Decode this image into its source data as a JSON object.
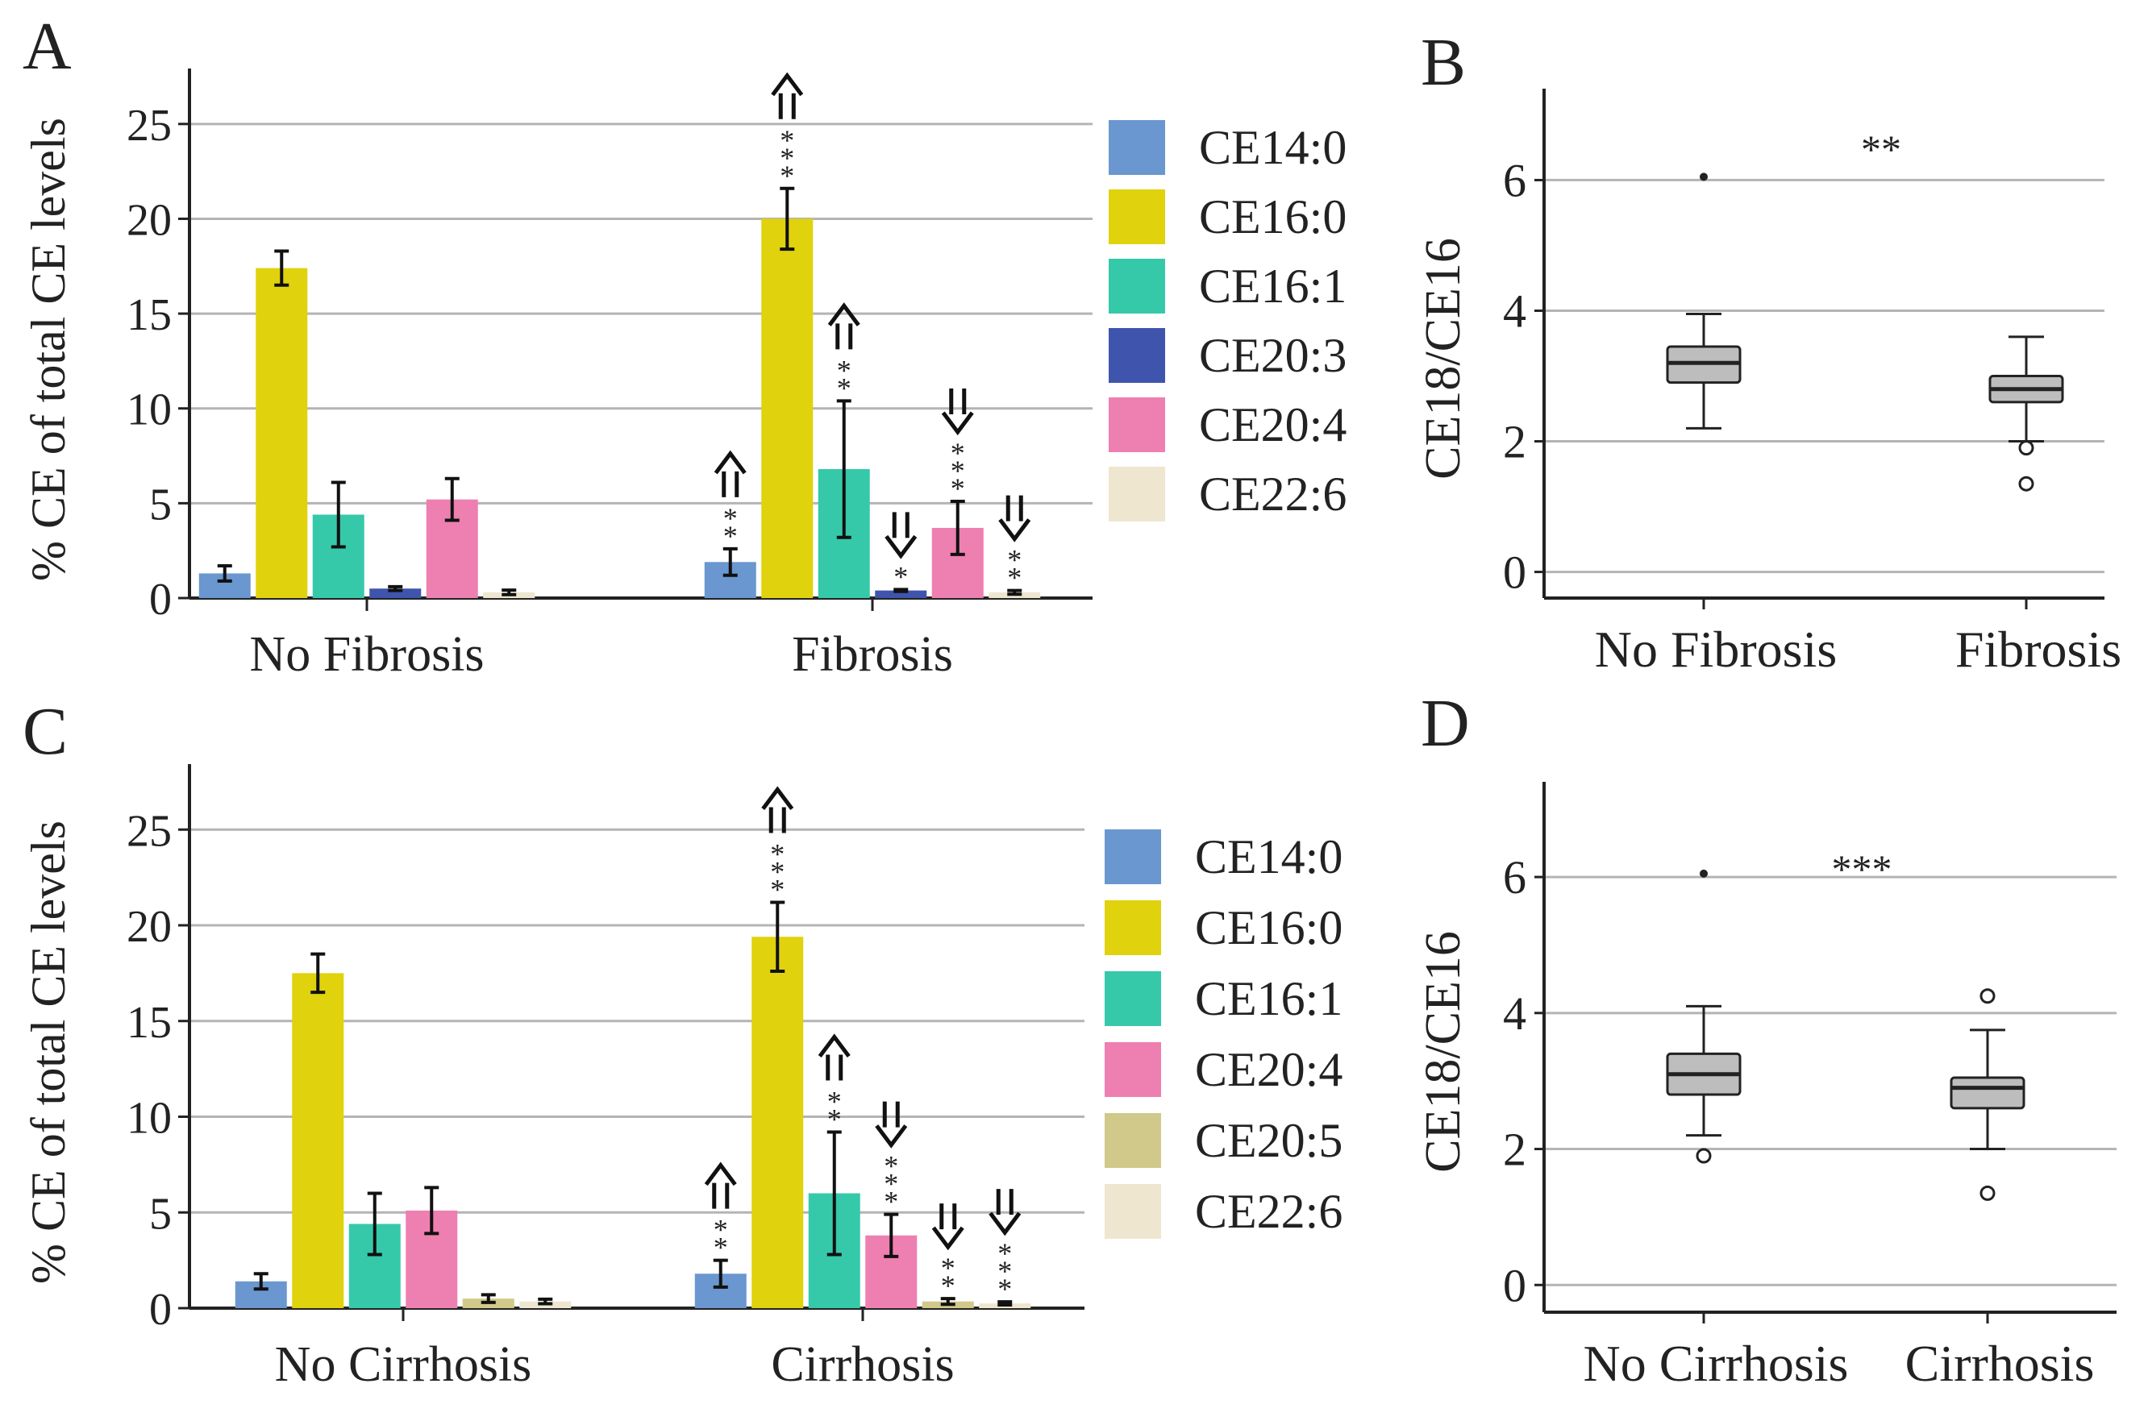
{
  "chart_data": [
    {
      "panel": "A",
      "type": "bar",
      "ylabel": "% CE of total CE levels",
      "yticks": [
        0,
        5,
        10,
        15,
        20,
        25
      ],
      "ylim": [
        0,
        27.5
      ],
      "grid": true,
      "legend_position": "right",
      "categories": [
        "No Fibrosis",
        "Fibrosis"
      ],
      "series": [
        {
          "name": "CE14:0",
          "color": "#6a97cf",
          "values": [
            1.3,
            1.9
          ],
          "errors": [
            0.4,
            0.7
          ],
          "sig": [
            "",
            "**"
          ],
          "dir": [
            "",
            "up"
          ]
        },
        {
          "name": "CE16:0",
          "color": "#e0d20c",
          "values": [
            17.4,
            20.0
          ],
          "errors": [
            0.9,
            1.6
          ],
          "sig": [
            "",
            "***"
          ],
          "dir": [
            "",
            "up"
          ]
        },
        {
          "name": "CE16:1",
          "color": "#35c9aa",
          "values": [
            4.4,
            6.8
          ],
          "errors": [
            1.7,
            3.6
          ],
          "sig": [
            "",
            "**"
          ],
          "dir": [
            "",
            "up"
          ]
        },
        {
          "name": "CE20:3",
          "color": "#3f55ad",
          "values": [
            0.5,
            0.4
          ],
          "errors": [
            0.1,
            0.05
          ],
          "sig": [
            "",
            "*"
          ],
          "dir": [
            "",
            "down"
          ]
        },
        {
          "name": "CE20:4",
          "color": "#ee7fb1",
          "values": [
            5.2,
            3.7
          ],
          "errors": [
            1.1,
            1.4
          ],
          "sig": [
            "",
            "***"
          ],
          "dir": [
            "",
            "down"
          ]
        },
        {
          "name": "CE22:6",
          "color": "#eee6cf",
          "values": [
            0.3,
            0.3
          ],
          "errors": [
            0.12,
            0.1
          ],
          "sig": [
            "",
            "**"
          ],
          "dir": [
            "",
            "down"
          ]
        }
      ]
    },
    {
      "panel": "B",
      "type": "box",
      "ylabel": "CE18/CE16",
      "yticks": [
        0,
        2,
        4,
        6
      ],
      "ylim": [
        -0.4,
        7.4
      ],
      "grid": true,
      "significance": "**",
      "categories": [
        "No Fibrosis",
        "Fibrosis"
      ],
      "boxes": [
        {
          "name": "No Fibrosis",
          "whisker_low": 2.2,
          "q1": 2.9,
          "median": 3.2,
          "q3": 3.45,
          "whisker_high": 3.95,
          "outliers_filled": [
            6.05
          ],
          "outliers_open": []
        },
        {
          "name": "Fibrosis",
          "whisker_low": 2.0,
          "q1": 2.6,
          "median": 2.8,
          "q3": 3.0,
          "whisker_high": 3.6,
          "outliers_filled": [],
          "outliers_open": [
            1.9,
            1.35
          ]
        }
      ]
    },
    {
      "panel": "C",
      "type": "bar",
      "ylabel": "% CE of total CE levels",
      "yticks": [
        0,
        5,
        10,
        15,
        20,
        25
      ],
      "ylim": [
        0,
        28
      ],
      "grid": true,
      "legend_position": "right",
      "categories": [
        "No Cirrhosis",
        "Cirrhosis"
      ],
      "series": [
        {
          "name": "CE14:0",
          "color": "#6a97cf",
          "values": [
            1.4,
            1.8
          ],
          "errors": [
            0.4,
            0.7
          ],
          "sig": [
            "",
            "**"
          ],
          "dir": [
            "",
            "up"
          ]
        },
        {
          "name": "CE16:0",
          "color": "#e0d20c",
          "values": [
            17.5,
            19.4
          ],
          "errors": [
            1.0,
            1.8
          ],
          "sig": [
            "",
            "***"
          ],
          "dir": [
            "",
            "up"
          ]
        },
        {
          "name": "CE16:1",
          "color": "#35c9aa",
          "values": [
            4.4,
            6.0
          ],
          "errors": [
            1.6,
            3.2
          ],
          "sig": [
            "",
            "**"
          ],
          "dir": [
            "",
            "up"
          ]
        },
        {
          "name": "CE20:4",
          "color": "#ee7fb1",
          "values": [
            5.1,
            3.8
          ],
          "errors": [
            1.2,
            1.1
          ],
          "sig": [
            "",
            "***"
          ],
          "dir": [
            "",
            "down"
          ]
        },
        {
          "name": "CE20:5",
          "color": "#d0c98a",
          "values": [
            0.5,
            0.35
          ],
          "errors": [
            0.2,
            0.15
          ],
          "sig": [
            "",
            "**"
          ],
          "dir": [
            "",
            "down"
          ]
        },
        {
          "name": "CE22:6",
          "color": "#eee6cf",
          "values": [
            0.35,
            0.25
          ],
          "errors": [
            0.12,
            0.08
          ],
          "sig": [
            "",
            "***"
          ],
          "dir": [
            "",
            "down"
          ]
        }
      ]
    },
    {
      "panel": "D",
      "type": "box",
      "ylabel": "CE18/CE16",
      "yticks": [
        0,
        2,
        4,
        6
      ],
      "ylim": [
        -0.4,
        7.4
      ],
      "grid": true,
      "significance": "***",
      "categories": [
        "No Cirrhosis",
        "Cirrhosis"
      ],
      "boxes": [
        {
          "name": "No Cirrhosis",
          "whisker_low": 2.2,
          "q1": 2.8,
          "median": 3.1,
          "q3": 3.4,
          "whisker_high": 4.1,
          "outliers_filled": [
            6.05
          ],
          "outliers_open": [
            1.9
          ]
        },
        {
          "name": "Cirrhosis",
          "whisker_low": 2.0,
          "q1": 2.6,
          "median": 2.9,
          "q3": 3.05,
          "whisker_high": 3.75,
          "outliers_filled": [],
          "outliers_open": [
            4.25,
            1.35
          ]
        }
      ]
    }
  ]
}
